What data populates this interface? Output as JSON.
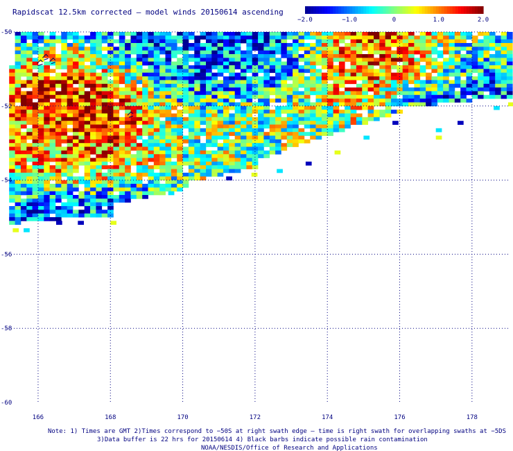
{
  "title": "Rapidscat 12.5km corrected — model winds 20150614 ascending",
  "colorbar": {
    "min": -2.0,
    "max": 2.0,
    "tick_labels": [
      "−2.0",
      "−1.0",
      "0",
      "1.0",
      "2.0"
    ],
    "tick_values": [
      -2.0,
      -1.0,
      0.0,
      1.0,
      2.0
    ],
    "colors": [
      "#00008f",
      "#0000ff",
      "#0080ff",
      "#00ffff",
      "#80ff80",
      "#ffff00",
      "#ff8000",
      "#ff0000",
      "#800000"
    ]
  },
  "footer": {
    "line1": "Note: 1) Times are GMT 2)Times correspond to −50S at right swath edge — time is right swath for overlapping swaths at −5DS",
    "line2": "3)Data buffer is 22 hrs for 20150614 4) Black barbs indicate possible rain contamination",
    "line3": "NOAA/NESDIS/Office of Research and Applications"
  },
  "chart_data": {
    "type": "heatmap",
    "title": "Rapidscat 12.5km corrected — model winds 20150614 ascending",
    "xlabel": "",
    "ylabel": "",
    "xlim": [
      165.1,
      179.0
    ],
    "ylim": [
      -60,
      -50
    ],
    "x_ticks": [
      166,
      168,
      170,
      172,
      174,
      176,
      178
    ],
    "x_tick_labels": [
      "166",
      "168",
      "170",
      "172",
      "174",
      "176",
      "178"
    ],
    "y_ticks": [
      -50,
      -52,
      -54,
      -56,
      -58,
      -60
    ],
    "y_tick_labels": [
      "-50",
      "-52",
      "-54",
      "-56",
      "-58",
      "-60"
    ],
    "grid": true,
    "value_range": [
      -2.0,
      2.0
    ],
    "cell_size_deg": [
      0.16,
      0.1
    ],
    "regions": [
      {
        "name": "west strong positive",
        "lon": [
          166.8,
          168.6
        ],
        "lat": [
          -53.0,
          -51.2
        ],
        "value": 1.6
      },
      {
        "name": "west positive band",
        "lon": [
          165.3,
          168.0
        ],
        "lat": [
          -54.0,
          -52.8
        ],
        "value": 0.8
      },
      {
        "name": "north-central negative",
        "lon": [
          168.5,
          173.0
        ],
        "lat": [
          -51.5,
          -50.0
        ],
        "value": -1.2
      },
      {
        "name": "central mixed",
        "lon": [
          168.5,
          173.5
        ],
        "lat": [
          -53.8,
          -51.5
        ],
        "value": 0.0
      },
      {
        "name": "east positive",
        "lon": [
          174.0,
          177.0
        ],
        "lat": [
          -52.0,
          -50.0
        ],
        "value": 1.3
      },
      {
        "name": "east negative",
        "lon": [
          175.5,
          179.0
        ],
        "lat": [
          -52.5,
          -51.3
        ],
        "value": -1.6
      },
      {
        "name": "far east mixed",
        "lon": [
          177.0,
          179.0
        ],
        "lat": [
          -51.5,
          -50.0
        ],
        "value": -0.4
      },
      {
        "name": "southern fringe negative",
        "lon": [
          165.2,
          169.0
        ],
        "lat": [
          -55.1,
          -54.3
        ],
        "value": -1.1
      }
    ]
  }
}
